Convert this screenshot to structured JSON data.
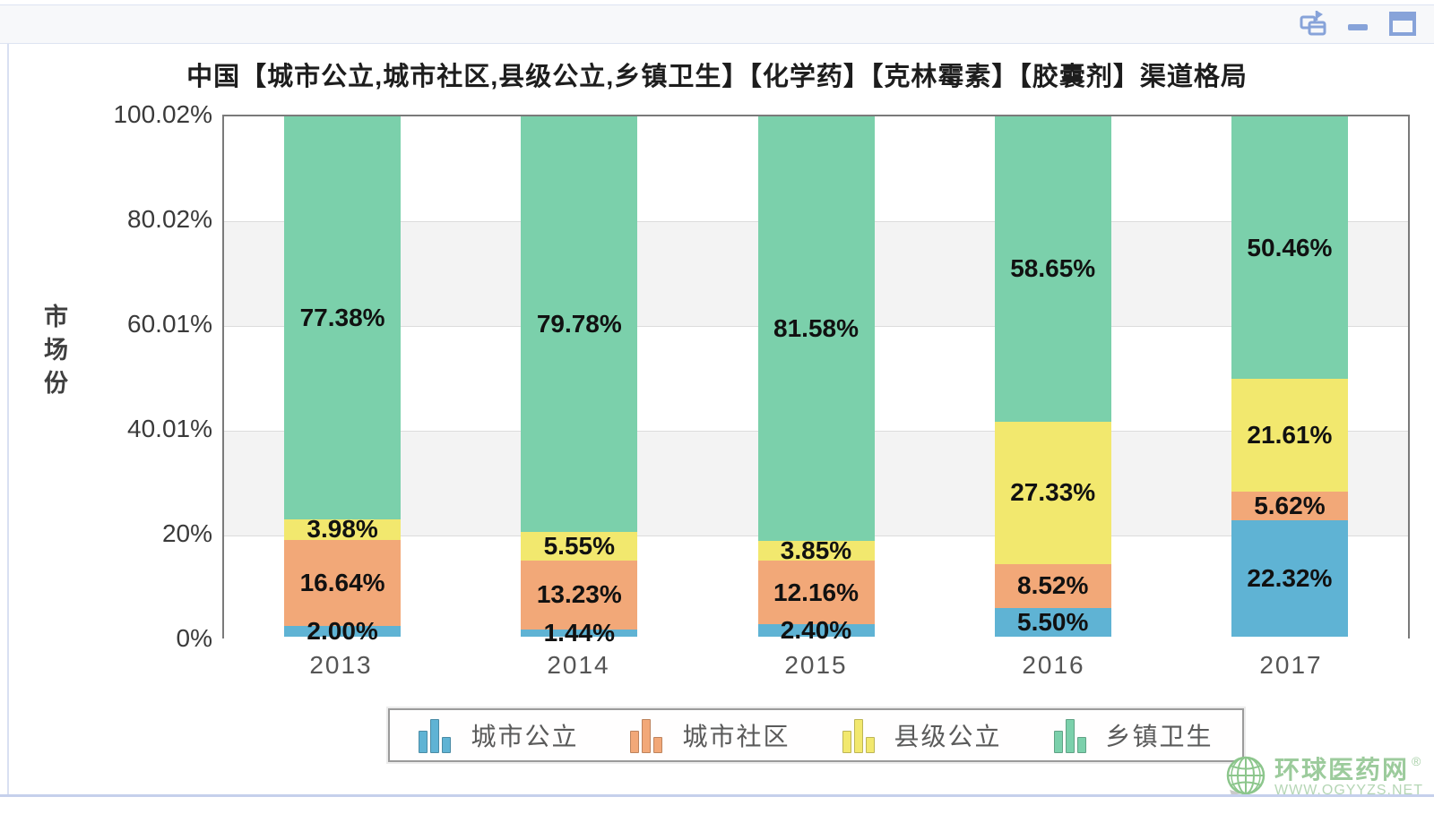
{
  "titlebar": {
    "controls": [
      {
        "icon": "cascade-window-icon"
      },
      {
        "icon": "minimize-icon"
      },
      {
        "icon": "maximize-icon"
      }
    ],
    "icon_color": "#87a3d9"
  },
  "chart_data": {
    "type": "bar",
    "stacked": true,
    "title": "中国【城市公立,城市社区,县级公立,乡镇卫生】【化学药】【克林霉素】【胶囊剂】渠道格局",
    "ylabel": "市场份",
    "xlabel": "",
    "categories": [
      "2013",
      "2014",
      "2015",
      "2016",
      "2017"
    ],
    "series": [
      {
        "key": "urban-public",
        "name": "城市公立",
        "color": "#5fb3d4",
        "values": [
          2.0,
          1.44,
          2.4,
          5.5,
          22.32
        ],
        "labels": [
          "2.00%",
          "1.44%",
          "2.40%",
          "5.50%",
          "22.32%"
        ]
      },
      {
        "key": "urban-community",
        "name": "城市社区",
        "color": "#f2a878",
        "values": [
          16.64,
          13.23,
          12.16,
          8.52,
          5.62
        ],
        "labels": [
          "16.64%",
          "13.23%",
          "12.16%",
          "8.52%",
          "5.62%"
        ]
      },
      {
        "key": "county-public",
        "name": "县级公立",
        "color": "#f2e86e",
        "values": [
          3.98,
          5.55,
          3.85,
          27.33,
          21.61
        ],
        "labels": [
          "3.98%",
          "5.55%",
          "3.85%",
          "27.33%",
          "21.61%"
        ]
      },
      {
        "key": "township-health",
        "name": "乡镇卫生",
        "color": "#7bd0ab",
        "values": [
          77.38,
          79.78,
          81.58,
          58.65,
          50.46
        ],
        "labels": [
          "77.38%",
          "79.78%",
          "81.58%",
          "58.65%",
          "50.46%"
        ]
      }
    ],
    "y_axis": {
      "max": 100.02,
      "ticks": [
        {
          "label": "100.02%",
          "value": 100.02
        },
        {
          "label": "80.02%",
          "value": 80.02
        },
        {
          "label": "60.01%",
          "value": 60.01
        },
        {
          "label": "40.01%",
          "value": 40.01
        },
        {
          "label": "20%",
          "value": 20
        },
        {
          "label": "0%",
          "value": 0
        }
      ],
      "band_color": "#f3f3f3"
    },
    "legend_position": "bottom"
  },
  "watermark": {
    "name": "环球医药网",
    "reg": "®",
    "url": "WWW.QGYYZS.NET",
    "color": "#9ccb9c"
  }
}
